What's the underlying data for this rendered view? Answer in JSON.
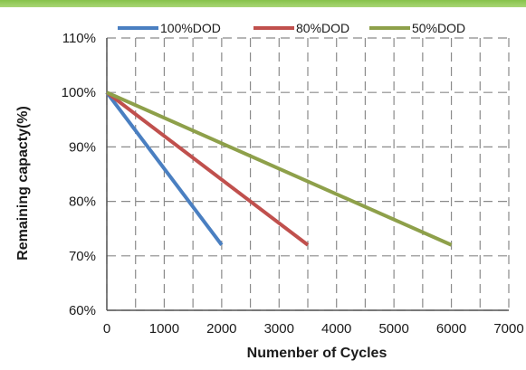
{
  "chart_data": {
    "type": "line",
    "title": "",
    "xlabel": "Numenber of Cycles",
    "ylabel": "Remaining capacty(%)",
    "xlim": [
      0,
      7000
    ],
    "ylim": [
      60,
      110
    ],
    "x_ticks": [
      0,
      1000,
      2000,
      3000,
      4000,
      5000,
      6000,
      7000
    ],
    "x_tick_labels": [
      "0",
      "1000",
      "2000",
      "3000",
      "4000",
      "5000",
      "6000",
      "7000"
    ],
    "y_ticks": [
      60,
      70,
      80,
      90,
      100,
      110
    ],
    "y_tick_labels": [
      "60%",
      "70%",
      "80%",
      "90%",
      "100%",
      "110%"
    ],
    "grid": true,
    "legend_position": "top",
    "series": [
      {
        "name": "100%DOD",
        "color": "#4a7fc1",
        "x": [
          0,
          2000
        ],
        "y": [
          100,
          72
        ]
      },
      {
        "name": "80%DOD",
        "color": "#c0504d",
        "x": [
          0,
          3500
        ],
        "y": [
          100,
          72
        ]
      },
      {
        "name": "50%DOD",
        "color": "#8ea04a",
        "x": [
          0,
          6000
        ],
        "y": [
          100,
          72
        ]
      }
    ]
  }
}
